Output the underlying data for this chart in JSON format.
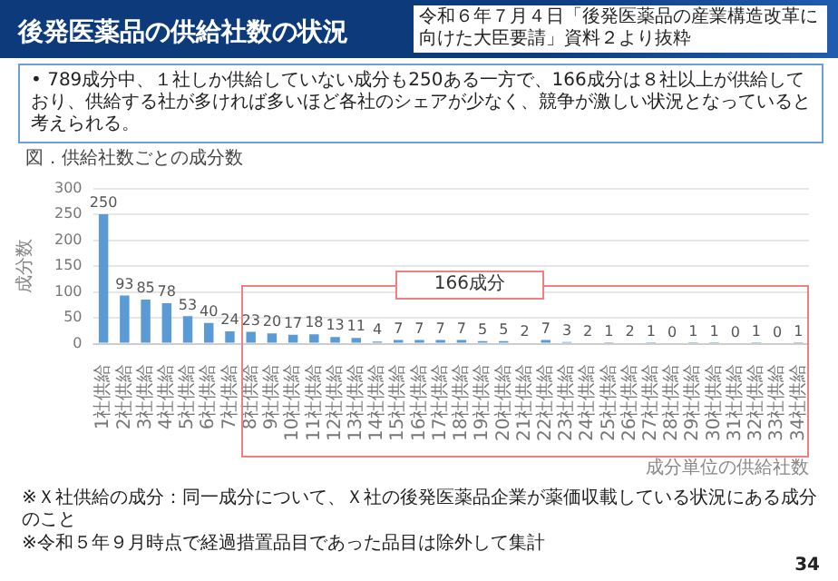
{
  "chart_data": {
    "type": "bar",
    "title": "後発医薬品の供給社数の状況",
    "subtitle": "図．供給社数ごとの成分数",
    "xlabel": "成分単位の供給社数",
    "ylabel": "成分数",
    "categories": [
      "1社供給",
      "2社供給",
      "3社供給",
      "4社供給",
      "5社供給",
      "6社供給",
      "7社供給",
      "8社供給",
      "9社供給",
      "10社供給",
      "11社供給",
      "12社供給",
      "13社供給",
      "14社供給",
      "15社供給",
      "16社供給",
      "17社供給",
      "18社供給",
      "19社供給",
      "20社供給",
      "21社供給",
      "22社供給",
      "23社供給",
      "24社供給",
      "25社供給",
      "26社供給",
      "27社供給",
      "28社供給",
      "29社供給",
      "30社供給",
      "31社供給",
      "32社供給",
      "33社供給",
      "34社供給"
    ],
    "values": [
      250,
      93,
      85,
      78,
      53,
      40,
      24,
      23,
      20,
      17,
      18,
      13,
      11,
      4,
      7,
      7,
      7,
      7,
      5,
      5,
      2,
      7,
      3,
      2,
      1,
      2,
      1,
      0,
      1,
      1,
      0,
      1,
      0,
      1
    ],
    "color": "#5b9bd5",
    "ylim": [
      0,
      300
    ],
    "yticks": [
      0,
      50,
      100,
      150,
      200,
      250,
      300
    ],
    "grid": "y",
    "data_labels": true,
    "annotations": [
      "令和６年７月４日「後発医薬品の産業構造改革に向けた大臣要請」資料２より抜粋",
      "• 789成分中、１社しか供給していない成分も250ある一方で、166成分は８社以上が供給しており、供給する社が多ければ多いほど各社のシェアが少なく、競争が激しい状況となっていると考えられる。",
      "※Ｘ社供給の成分：同一成分について、Ｘ社の後発医薬品企業が薬価収載している状況にある成分のこと",
      "※令和５年９月時点で経過措置品目であった品目は除外して集計",
      "34",
      "166成分"
    ]
  }
}
